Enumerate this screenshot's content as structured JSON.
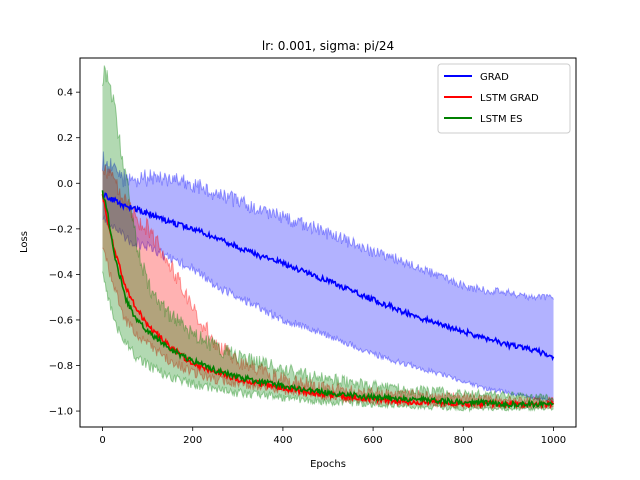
{
  "chart_data": {
    "type": "line",
    "title": "lr: 0.001, sigma: pi/24",
    "xlabel": "Epochs",
    "ylabel": "Loss",
    "xlim": [
      -50,
      1050
    ],
    "ylim": [
      -1.07,
      0.55
    ],
    "x_ticks": [
      0,
      200,
      400,
      600,
      800,
      1000
    ],
    "x_tick_labels": [
      "0",
      "200",
      "400",
      "600",
      "800",
      "1000"
    ],
    "y_ticks": [
      -1.0,
      -0.8,
      -0.6,
      -0.4,
      -0.2,
      0.0,
      0.2,
      0.4
    ],
    "y_tick_labels": [
      "−1.0",
      "−0.8",
      "−0.6",
      "−0.4",
      "−0.2",
      "0.0",
      "0.2",
      "0.4"
    ],
    "grid": false,
    "legend_position": "top-right",
    "shaded_bands": true,
    "series": [
      {
        "name": "GRAD",
        "color": "#0000ff",
        "x": [
          0,
          50,
          100,
          150,
          200,
          250,
          300,
          350,
          400,
          450,
          500,
          550,
          600,
          650,
          700,
          750,
          800,
          850,
          900,
          950,
          1000
        ],
        "mean": [
          -0.05,
          -0.1,
          -0.13,
          -0.17,
          -0.2,
          -0.24,
          -0.28,
          -0.32,
          -0.35,
          -0.39,
          -0.43,
          -0.47,
          -0.51,
          -0.55,
          -0.59,
          -0.62,
          -0.65,
          -0.68,
          -0.71,
          -0.73,
          -0.76
        ],
        "upper": [
          0.1,
          0.02,
          0.02,
          0.02,
          -0.01,
          -0.04,
          -0.08,
          -0.12,
          -0.15,
          -0.18,
          -0.22,
          -0.26,
          -0.3,
          -0.33,
          -0.37,
          -0.41,
          -0.45,
          -0.47,
          -0.48,
          -0.5,
          -0.5
        ],
        "lower": [
          -0.15,
          -0.24,
          -0.28,
          -0.33,
          -0.37,
          -0.45,
          -0.5,
          -0.55,
          -0.6,
          -0.63,
          -0.67,
          -0.71,
          -0.75,
          -0.78,
          -0.81,
          -0.84,
          -0.87,
          -0.9,
          -0.92,
          -0.94,
          -0.96
        ]
      },
      {
        "name": "LSTM GRAD",
        "color": "#ff0000",
        "x": [
          0,
          10,
          25,
          50,
          75,
          100,
          150,
          200,
          250,
          300,
          400,
          500,
          600,
          700,
          800,
          900,
          1000
        ],
        "mean": [
          -0.05,
          -0.15,
          -0.28,
          -0.45,
          -0.55,
          -0.62,
          -0.72,
          -0.79,
          -0.83,
          -0.86,
          -0.9,
          -0.93,
          -0.95,
          -0.96,
          -0.97,
          -0.97,
          -0.97
        ],
        "upper": [
          0.1,
          0.05,
          0.0,
          -0.08,
          -0.15,
          -0.2,
          -0.35,
          -0.55,
          -0.7,
          -0.78,
          -0.86,
          -0.9,
          -0.92,
          -0.93,
          -0.94,
          -0.95,
          -0.95
        ],
        "lower": [
          -0.3,
          -0.35,
          -0.45,
          -0.6,
          -0.66,
          -0.71,
          -0.78,
          -0.83,
          -0.86,
          -0.88,
          -0.91,
          -0.94,
          -0.96,
          -0.97,
          -0.98,
          -0.98,
          -0.98
        ]
      },
      {
        "name": "LSTM ES",
        "color": "#008000",
        "x": [
          0,
          10,
          25,
          50,
          75,
          100,
          150,
          200,
          250,
          300,
          400,
          500,
          600,
          700,
          800,
          900,
          1000
        ],
        "mean": [
          -0.04,
          -0.12,
          -0.3,
          -0.5,
          -0.6,
          -0.65,
          -0.73,
          -0.78,
          -0.82,
          -0.85,
          -0.89,
          -0.92,
          -0.94,
          -0.95,
          -0.96,
          -0.97,
          -0.97
        ],
        "upper": [
          0.47,
          0.48,
          0.35,
          0.05,
          -0.25,
          -0.45,
          -0.58,
          -0.66,
          -0.72,
          -0.76,
          -0.82,
          -0.86,
          -0.89,
          -0.91,
          -0.92,
          -0.93,
          -0.94
        ],
        "lower": [
          -0.38,
          -0.48,
          -0.6,
          -0.7,
          -0.76,
          -0.8,
          -0.85,
          -0.88,
          -0.9,
          -0.92,
          -0.94,
          -0.96,
          -0.97,
          -0.98,
          -0.99,
          -0.99,
          -0.99
        ]
      }
    ]
  }
}
